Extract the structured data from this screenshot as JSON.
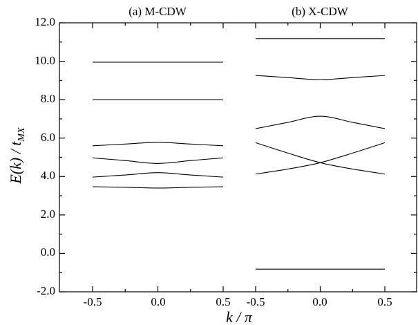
{
  "chart_data": {
    "type": "line",
    "titles": [
      "(a) M-CDW",
      "(b) X-CDW"
    ],
    "ylabel": "E(k) / t_MX",
    "xlabel": "k / π",
    "ylim": [
      -2.0,
      12.0
    ],
    "yticks": [
      "-2.0",
      "0.0",
      "2.0",
      "4.0",
      "6.0",
      "8.0",
      "10.0",
      "12.0"
    ],
    "xticks": [
      "-0.5",
      "0.0",
      "0.5",
      "-0.5",
      "0.0",
      "0.5"
    ],
    "panels": [
      {
        "name": "(a) M-CDW",
        "x": [
          -0.5,
          -0.25,
          0.0,
          0.25,
          0.5
        ],
        "series": [
          {
            "values": [
              9.95,
              9.95,
              9.95,
              9.95,
              9.95
            ]
          },
          {
            "values": [
              8.0,
              8.0,
              8.0,
              8.0,
              8.0
            ]
          },
          {
            "values": [
              5.6,
              5.69,
              5.78,
              5.69,
              5.6
            ]
          },
          {
            "values": [
              4.97,
              4.83,
              4.68,
              4.83,
              4.97
            ]
          },
          {
            "values": [
              3.97,
              4.08,
              4.2,
              4.08,
              3.97
            ]
          },
          {
            "values": [
              3.47,
              3.44,
              3.4,
              3.44,
              3.47
            ]
          }
        ]
      },
      {
        "name": "(b) X-CDW",
        "x": [
          -0.5,
          -0.25,
          0.0,
          0.25,
          0.5
        ],
        "series": [
          {
            "values": [
              11.18,
              11.18,
              11.18,
              11.18,
              11.18
            ]
          },
          {
            "values": [
              9.26,
              9.15,
              9.04,
              9.15,
              9.26
            ]
          },
          {
            "values": [
              6.49,
              6.82,
              7.14,
              6.82,
              6.49
            ]
          },
          {
            "values": [
              5.76,
              5.22,
              4.72,
              4.39,
              4.13
            ]
          },
          {
            "values": [
              4.13,
              4.39,
              4.72,
              5.22,
              5.76
            ]
          },
          {
            "values": [
              -0.82,
              -0.82,
              -0.82,
              -0.82,
              -0.82
            ]
          }
        ]
      }
    ]
  }
}
